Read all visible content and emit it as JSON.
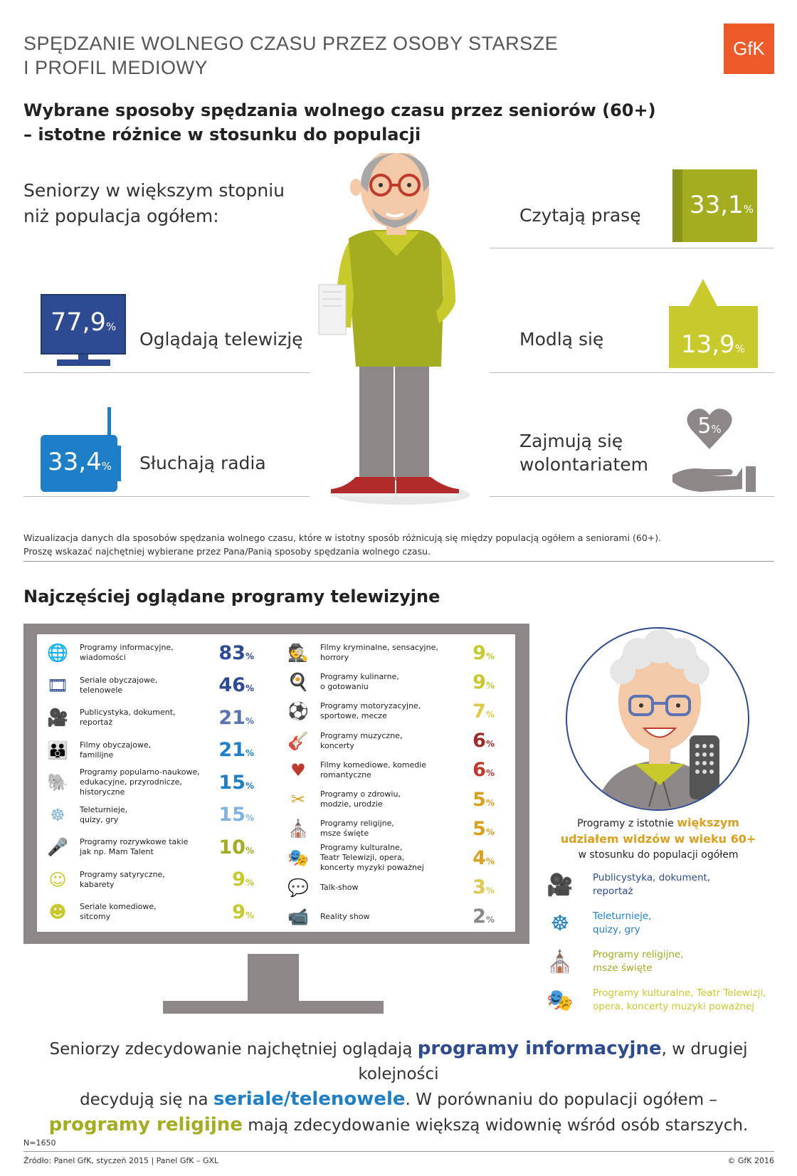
{
  "header": {
    "title_line1": "SPĘDZANIE WOLNEGO CZASU PRZEZ OSOBY STARSZE",
    "title_line2": "I PROFIL MEDIOWY",
    "logo": "GfK"
  },
  "section1": {
    "title_line1": "Wybrane sposoby spędzania wolnego czasu przez seniorów (60+)",
    "title_line2": "– istotne różnice w stosunku do populacji",
    "intro_line1": "Seniorzy w większym stopniu",
    "intro_line2": "niż populacja ogółem:",
    "items": [
      {
        "label": "Oglądają telewizję",
        "value": "77,9",
        "unit": "%",
        "icon": "tv-icon",
        "color": "#2d4a93"
      },
      {
        "label": "Słuchają radia",
        "value": "33,4",
        "unit": "%",
        "icon": "radio-icon",
        "color": "#1e7fc8"
      },
      {
        "label": "Czytają prasę",
        "value": "33,1",
        "unit": "%",
        "icon": "book-icon",
        "color": "#a3ad1f"
      },
      {
        "label": "Modlą się",
        "value": "13,9",
        "unit": "%",
        "icon": "church-icon",
        "color": "#c8c92a"
      },
      {
        "label_line1": "Zajmują się",
        "label_line2": "wolontariatem",
        "value": "5",
        "unit": "%",
        "icon": "heart-hand-icon",
        "color": "#8d8787"
      }
    ],
    "note_line1": "Wizualizacja danych dla sposobów spędzania wolnego czasu, które w istotny sposób różnicują się między populacją ogółem a seniorami (60+).",
    "note_line2": "Proszę wskazać najchętniej wybierane przez Pana/Panią sposoby spędzania wolnego czasu."
  },
  "section2": {
    "title": "Najczęściej oglądane programy telewizyjne",
    "unit": "%",
    "left_column": [
      {
        "line1": "Programy informacyjne,",
        "line2": "wiadomości",
        "line3": "",
        "value": "83",
        "icon": "globe-icon",
        "color": "#2d4a93"
      },
      {
        "line1": "Seriale obyczajowe,",
        "line2": "telenowele",
        "line3": "",
        "value": "46",
        "icon": "film-reel-icon",
        "color": "#2d4a93"
      },
      {
        "line1": "Publicystyka, dokument,",
        "line2": "reportaż",
        "line3": "",
        "value": "21",
        "icon": "video-camera-icon",
        "color": "#5b73b5"
      },
      {
        "line1": "Filmy obyczajowe,",
        "line2": "familijne",
        "line3": "",
        "value": "21",
        "icon": "family-icon",
        "color": "#1e7fc8"
      },
      {
        "line1": "Programy popularno-naukowe,",
        "line2": "edukacyjne, przyrodnicze,",
        "line3": "historyczne",
        "value": "15",
        "icon": "elephant-icon",
        "color": "#1e7fc8"
      },
      {
        "line1": "Teleturnieje,",
        "line2": "quizy, gry",
        "line3": "",
        "value": "15",
        "icon": "wheel-of-fortune-icon",
        "color": "#7fb3e0"
      },
      {
        "line1": "Programy rozrywkowe takie",
        "line2": "jak np. Mam Talent",
        "line3": "",
        "value": "10",
        "icon": "microphone-person-icon",
        "color": "#a3ad1f"
      },
      {
        "line1": "Programy satyryczne,",
        "line2": "kabarety",
        "line3": "",
        "value": "9",
        "icon": "smiley-icon",
        "color": "#c8c92a"
      },
      {
        "line1": "Seriale komediowe,",
        "line2": "sitcomy",
        "line3": "",
        "value": "9",
        "icon": "film-smiley-icon",
        "color": "#c8c92a"
      }
    ],
    "right_column": [
      {
        "line1": "Filmy kryminalne, sensacyjne,",
        "line2": "horrory",
        "line3": "",
        "value": "9",
        "icon": "detective-icon",
        "color": "#c8c92a"
      },
      {
        "line1": "Programy kulinarne,",
        "line2": "o gotowaniu",
        "line3": "",
        "value": "9",
        "icon": "cooking-icon",
        "color": "#c8c92a"
      },
      {
        "line1": "Programy motoryzacyjne,",
        "line2": "sportowe, mecze",
        "line3": "",
        "value": "7",
        "icon": "football-icon",
        "color": "#e0c84a"
      },
      {
        "line1": "Programy muzyczne,",
        "line2": "koncerty",
        "line3": "",
        "value": "6",
        "icon": "guitar-icon",
        "color": "#9e2a2a"
      },
      {
        "line1": "Filmy komediowe, komedie",
        "line2": "romantyczne",
        "line3": "",
        "value": "6",
        "icon": "clapperboard-heart-icon",
        "color": "#c0392b"
      },
      {
        "line1": "Programy o zdrowiu,",
        "line2": "modzie, urodzie",
        "line3": "",
        "value": "5",
        "icon": "comb-icon",
        "color": "#d9a11c"
      },
      {
        "line1": "Programy religijne,",
        "line2": "msze święte",
        "line3": "",
        "value": "5",
        "icon": "church-icon",
        "color": "#d9a11c"
      },
      {
        "line1": "Programy kulturalne,",
        "line2": "Teatr Telewizji, opera,",
        "line3": "koncerty myzyki poważnej",
        "value": "4",
        "icon": "theater-masks-icon",
        "color": "#d9a11c"
      },
      {
        "line1": "Talk-show",
        "line2": "",
        "line3": "",
        "value": "3",
        "icon": "talk-show-icon",
        "color": "#e0c84a"
      },
      {
        "line1": "Reality show",
        "line2": "",
        "line3": "",
        "value": "2",
        "icon": "cctv-camera-icon",
        "color": "#8d8787"
      }
    ],
    "circle_caption": {
      "pre": "Programy z istotnie ",
      "hl1": "większym",
      "hl2": "udziałem  widzów w wieku 60+",
      "post": "w stosunku do populacji ogółem"
    },
    "legend": [
      {
        "line1": "Publicystyka, dokument,",
        "line2": "reportaż",
        "icon": "video-camera-icon",
        "color": "#2d4a93"
      },
      {
        "line1": "Teleturnieje,",
        "line2": "quizy, gry",
        "icon": "wheel-of-fortune-icon",
        "color": "#1e7fc8"
      },
      {
        "line1": "Programy religijne,",
        "line2": "msze święte",
        "icon": "church-icon",
        "color": "#a3ad1f"
      },
      {
        "line1": "Programy kulturalne, Teatr Telewizji,",
        "line2": "opera, koncerty muzyki poważnej",
        "icon": "theater-masks-icon",
        "color": "#c8c92a"
      }
    ]
  },
  "summary": {
    "s1": "Seniorzy zdecydowanie najchętniej oglądają ",
    "b1": "programy informacyjne",
    "s2": ", w drugiej kolejności",
    "s3": "decydują się na ",
    "b2": "seriale/telenowele",
    "s4": ". W porównaniu do populacji ogółem –",
    "b3": "programy religijne",
    "s5": " mają zdecydowanie większą widownię wśród osób starszych."
  },
  "footer": {
    "n": "N=1650",
    "source": "Źródło: Panel GfK, styczeń 2015 | Panel GfK – GXL",
    "copyright": "© GfK 2016"
  }
}
